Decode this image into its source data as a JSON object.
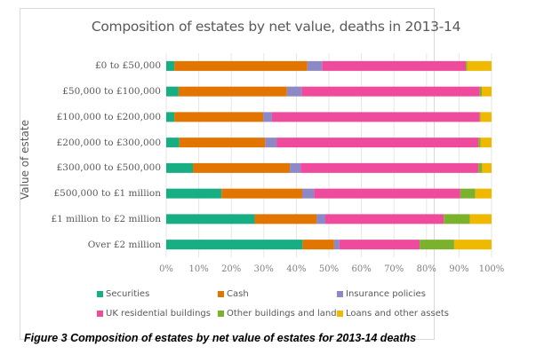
{
  "chart_data": {
    "type": "bar",
    "orientation": "horizontal",
    "stacked": "percent",
    "title": "Composition of estates by net value, deaths in 2013-14",
    "xlabel": "",
    "ylabel": "Value of estate",
    "xlim": [
      0,
      100
    ],
    "x_ticks": [
      "0%",
      "10%",
      "20%",
      "30%",
      "40%",
      "50%",
      "60%",
      "70%",
      "80%",
      "90%",
      "100%"
    ],
    "grid": true,
    "legend_position": "bottom",
    "categories": [
      "£0 to £50,000",
      "£50,000 to £100,000",
      "£100,000 to £200,000",
      "£200,000 to £300,000",
      "£300,000 to £500,000",
      "£500,000 to £1 million",
      "£1 million to £2 million",
      "Over £2 million"
    ],
    "series": [
      {
        "name": "Securities",
        "color": "#17ae84",
        "values": [
          2.5,
          3.8,
          2.5,
          4.0,
          8.2,
          17.0,
          27.2,
          41.9
        ]
      },
      {
        "name": "Cash",
        "color": "#e27400",
        "values": [
          40.9,
          33.3,
          27.3,
          26.4,
          29.8,
          24.8,
          19.0,
          9.7
        ]
      },
      {
        "name": "Insurance policies",
        "color": "#8d88c6",
        "values": [
          4.5,
          4.5,
          2.7,
          3.5,
          3.3,
          3.6,
          2.7,
          1.6
        ]
      },
      {
        "name": "UK residential buildings",
        "color": "#ef4b9c",
        "values": [
          44.2,
          54.8,
          63.9,
          62.1,
          54.7,
          45.0,
          36.4,
          24.7
        ]
      },
      {
        "name": "Other buildings and land",
        "color": "#7ab22e",
        "values": [
          0.4,
          0.6,
          0.2,
          0.6,
          1.1,
          4.6,
          8.0,
          10.6
        ]
      },
      {
        "name": "Loans and other assets",
        "color": "#eeb900",
        "values": [
          7.5,
          3.0,
          3.4,
          3.4,
          2.9,
          5.0,
          6.7,
          11.5
        ]
      }
    ]
  },
  "caption": "Figure 3 Composition of estates by net value of estates for 2013-14 deaths"
}
